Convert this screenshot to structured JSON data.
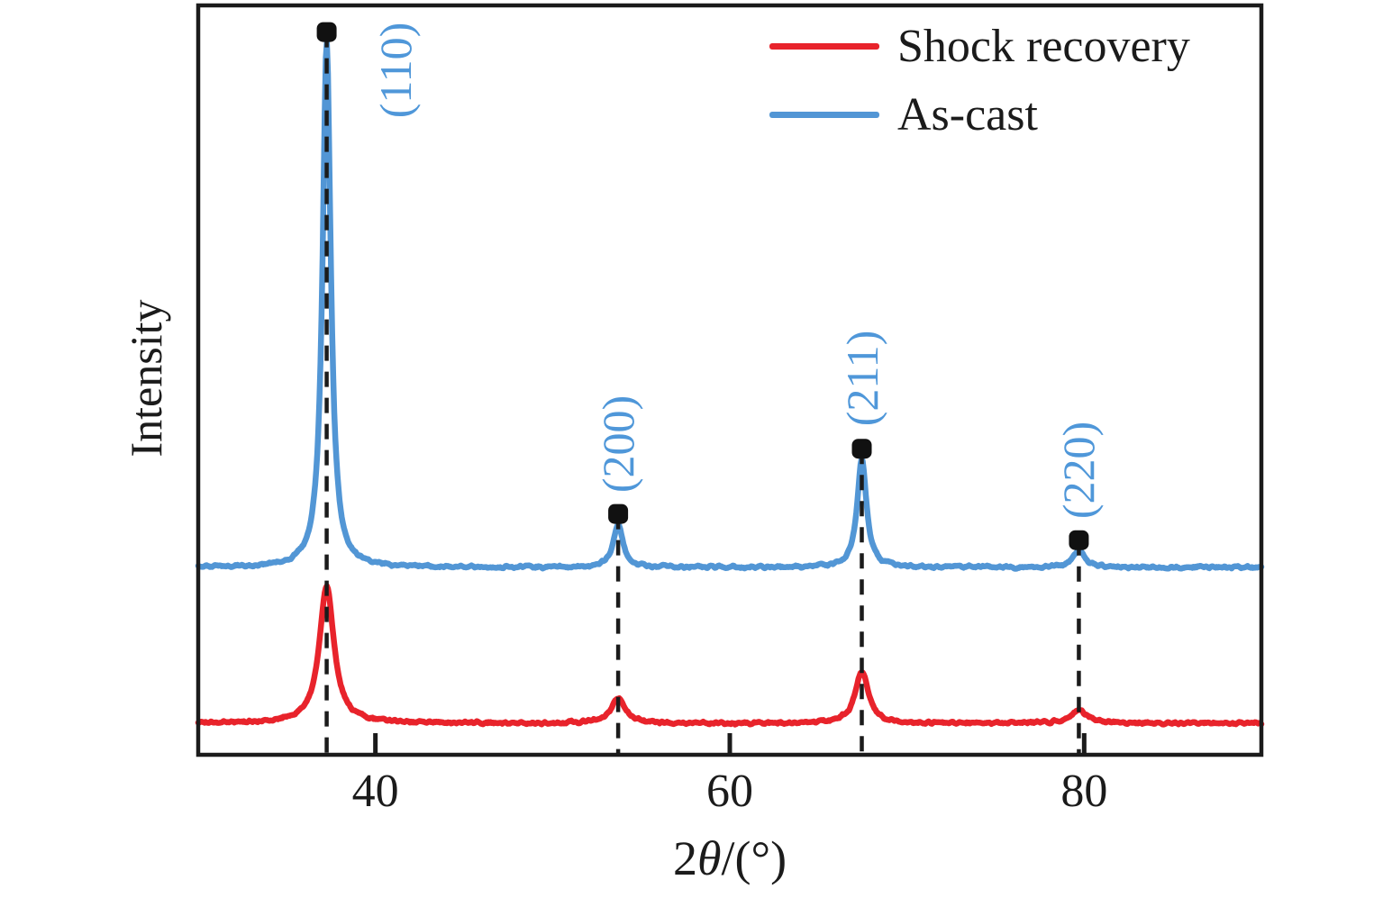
{
  "chart_data": {
    "type": "line",
    "title": "",
    "xlabel": "2θ/(°)",
    "xlabel_parts": [
      "2",
      "θ",
      "/(°)"
    ],
    "ylabel": "Intensity",
    "xlim": [
      30,
      90
    ],
    "ylim": [
      0,
      100
    ],
    "xticks": [
      40,
      60,
      80
    ],
    "yticks": [],
    "grid": false,
    "y_units": "arbitrary intensity units (no tick labels shown)",
    "background_color": "#ffffff",
    "frame_color": "#1b1b1b",
    "annotation_color": "#4f97d9",
    "marker_color": "#111111",
    "legend": {
      "position": "top-right-inside",
      "entries": [
        "Shock recovery",
        "As-cast"
      ]
    },
    "series": [
      {
        "name": "Shock recovery",
        "color": "#e8232b",
        "baseline": 4.2,
        "peaks": [
          {
            "center": 37.25,
            "height": 18.2,
            "hwhm": 0.5
          },
          {
            "center": 53.7,
            "height": 3.3,
            "hwhm": 0.5
          },
          {
            "center": 67.45,
            "height": 6.9,
            "hwhm": 0.45
          },
          {
            "center": 79.7,
            "height": 1.7,
            "hwhm": 0.55
          }
        ]
      },
      {
        "name": "As-cast",
        "color": "#5296d5",
        "baseline": 25.0,
        "peaks": [
          {
            "center": 37.25,
            "height": 70.0,
            "hwhm": 0.28
          },
          {
            "center": 53.7,
            "height": 5.7,
            "hwhm": 0.33
          },
          {
            "center": 67.45,
            "height": 14.4,
            "hwhm": 0.32
          },
          {
            "center": 79.7,
            "height": 2.2,
            "hwhm": 0.4
          }
        ]
      }
    ],
    "peak_annotations": [
      {
        "label": "(110)",
        "two_theta": 37.25,
        "placement": "right-of-peak"
      },
      {
        "label": "(200)",
        "two_theta": 53.7,
        "placement": "above-peak"
      },
      {
        "label": "(211)",
        "two_theta": 67.45,
        "placement": "above-peak"
      },
      {
        "label": "(220)",
        "two_theta": 79.7,
        "placement": "above-peak"
      }
    ],
    "guide_lines": {
      "style": "dashed",
      "color": "#1b1b1b",
      "at_two_theta": [
        37.25,
        53.7,
        67.45,
        79.7
      ]
    }
  }
}
